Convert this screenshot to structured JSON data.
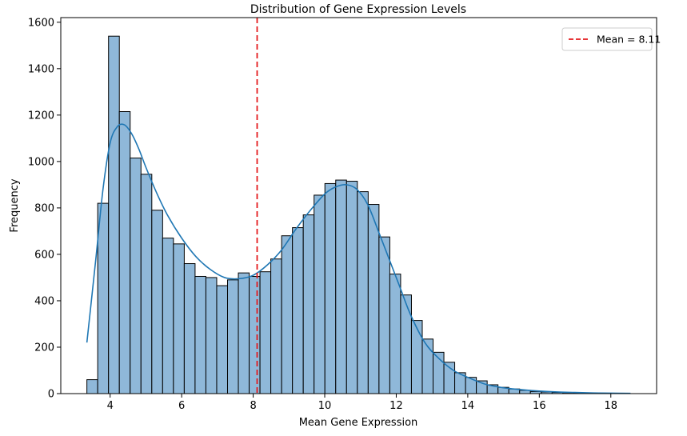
{
  "chart_data": {
    "type": "histogram",
    "title": "Distribution of Gene Expression Levels",
    "xlabel": "Mean Gene Expression",
    "ylabel": "Frequency",
    "xlim": [
      2.62,
      19.28
    ],
    "ylim": [
      0,
      1620
    ],
    "xticks": [
      4,
      6,
      8,
      10,
      12,
      14,
      16,
      18
    ],
    "yticks": [
      0,
      200,
      400,
      600,
      800,
      1000,
      1200,
      1400,
      1600
    ],
    "bin_start": 3.35,
    "bin_width": 0.3025,
    "bin_counts": [
      60,
      820,
      1540,
      1215,
      1015,
      945,
      790,
      670,
      645,
      560,
      505,
      500,
      465,
      490,
      520,
      505,
      525,
      580,
      680,
      715,
      770,
      855,
      905,
      920,
      915,
      870,
      815,
      675,
      515,
      425,
      315,
      235,
      178,
      135,
      90,
      70,
      55,
      38,
      27,
      20,
      14,
      9,
      7,
      5,
      4,
      3,
      2,
      2,
      1,
      1
    ],
    "kde": {
      "x": [
        3.35,
        3.6,
        3.8,
        4.0,
        4.2,
        4.4,
        4.6,
        4.8,
        5.0,
        5.3,
        5.6,
        6.0,
        6.4,
        6.8,
        7.2,
        7.6,
        8.0,
        8.4,
        8.8,
        9.2,
        9.6,
        10.0,
        10.3,
        10.6,
        10.9,
        11.2,
        11.5,
        11.8,
        12.1,
        12.4,
        12.8,
        13.2,
        13.6,
        14.0,
        14.5,
        15.0,
        15.5,
        16.0,
        16.5,
        17.0,
        17.5,
        18.0,
        18.55
      ],
      "y": [
        220,
        580,
        880,
        1080,
        1150,
        1158,
        1120,
        1055,
        975,
        865,
        770,
        670,
        590,
        535,
        500,
        495,
        510,
        555,
        620,
        710,
        790,
        860,
        890,
        900,
        880,
        815,
        700,
        580,
        460,
        340,
        220,
        150,
        100,
        70,
        40,
        25,
        17,
        11,
        7,
        5,
        3,
        2,
        1
      ]
    },
    "mean_line": {
      "value": 8.11,
      "label": "Mean = 8.11",
      "color": "#e41a1c"
    },
    "bar_fill": "#8fb8d9",
    "bar_edge": "#000000",
    "kde_color": "#1f77b4",
    "legend_position": "top-right"
  }
}
